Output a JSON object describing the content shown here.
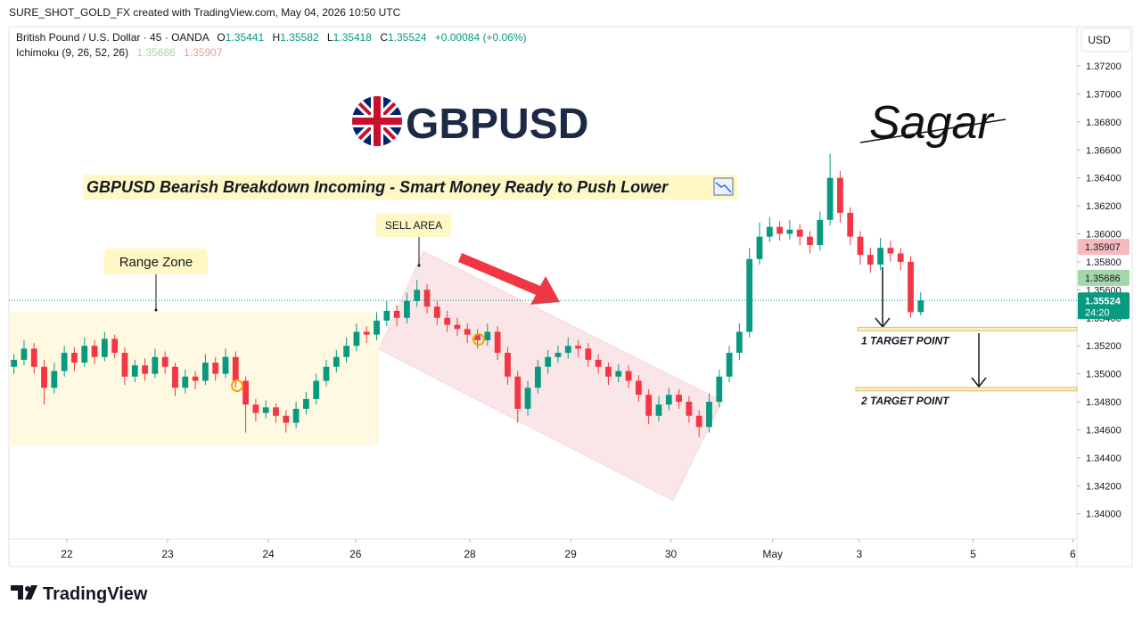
{
  "chart_data": {
    "type": "candlestick",
    "header": "SURE_SHOT_GOLD_FX created with TradingView.com, May 04, 2026 10:50 UTC",
    "symbol": "British Pound / U.S. Dollar · 45 · OANDA",
    "ohlc_prefixes": [
      "O",
      "H",
      "L",
      "C"
    ],
    "change": "+0.00084 (+0.06%)",
    "ichimoku": {
      "name": "Ichimoku (9, 26, 52, 26)",
      "values": [
        1.35686,
        1.35907
      ],
      "colors": [
        "#a5d6a7",
        "#ef9a9a"
      ]
    },
    "logo_text": "GBPUSD",
    "signature": "Sagar",
    "title": "GBPUSD Bearish Breakdown Incoming - Smart Money Ready to Push Lower",
    "annotations": [
      "SELL AREA",
      "Range Zone"
    ],
    "targets": [
      {
        "label": "1 TARGET POINT",
        "price": 1.3532
      },
      {
        "label": "2 TARGET POINT",
        "price": 1.3489
      }
    ],
    "currency": "USD",
    "countdown": "24:20",
    "brand": "TradingView",
    "up_color": "#089981",
    "down_color": "#f23645",
    "candles": {
      "open": [
        1.3505,
        1.351,
        1.3518,
        1.3505,
        1.349,
        1.3502,
        1.3515,
        1.3508,
        1.352,
        1.3512,
        1.3525,
        1.3515,
        1.3498,
        1.3506,
        1.35,
        1.3512,
        1.3505,
        1.349,
        1.3498,
        1.3495,
        1.3508,
        1.35,
        1.3512,
        1.3495,
        1.3478,
        1.3472,
        1.3476,
        1.347,
        1.3465,
        1.3475,
        1.3482,
        1.3495,
        1.3505,
        1.3512,
        1.352,
        1.353,
        1.3528,
        1.3538,
        1.3545,
        1.354,
        1.3552,
        1.356,
        1.3548,
        1.354,
        1.3535,
        1.3532,
        1.3528,
        1.3524,
        1.353,
        1.3515,
        1.3498,
        1.3475,
        1.349,
        1.3505,
        1.3512,
        1.3515,
        1.352,
        1.3518,
        1.351,
        1.3505,
        1.3498,
        1.3502,
        1.3495,
        1.3485,
        1.347,
        1.3478,
        1.3485,
        1.348,
        1.347,
        1.3462,
        1.348,
        1.3498,
        1.3515,
        1.353,
        1.3582,
        1.3598,
        1.3605,
        1.36,
        1.3603,
        1.3598,
        1.3592,
        1.361,
        1.364,
        1.3615,
        1.3598,
        1.3585,
        1.3578,
        1.359,
        1.3586,
        1.358,
        1.35441
      ],
      "high": [
        1.3514,
        1.3524,
        1.3522,
        1.351,
        1.3508,
        1.352,
        1.3519,
        1.3526,
        1.3524,
        1.353,
        1.3528,
        1.3519,
        1.351,
        1.3511,
        1.3518,
        1.3516,
        1.3508,
        1.3503,
        1.3502,
        1.3514,
        1.3512,
        1.3518,
        1.3516,
        1.3498,
        1.3482,
        1.3481,
        1.3479,
        1.3474,
        1.348,
        1.3487,
        1.35,
        1.351,
        1.3517,
        1.3526,
        1.3536,
        1.3534,
        1.3544,
        1.3552,
        1.3549,
        1.3558,
        1.3567,
        1.3564,
        1.3552,
        1.3545,
        1.354,
        1.3536,
        1.3532,
        1.3536,
        1.3534,
        1.3519,
        1.3502,
        1.3495,
        1.351,
        1.3517,
        1.352,
        1.3526,
        1.3524,
        1.3522,
        1.3514,
        1.3508,
        1.3507,
        1.3506,
        1.3499,
        1.3489,
        1.3484,
        1.349,
        1.3489,
        1.3484,
        1.3474,
        1.3486,
        1.3503,
        1.352,
        1.3536,
        1.359,
        1.3608,
        1.3612,
        1.3609,
        1.361,
        1.3607,
        1.3602,
        1.3616,
        1.3657,
        1.3645,
        1.3619,
        1.3602,
        1.359,
        1.3597,
        1.3595,
        1.359,
        1.3584,
        1.35582
      ],
      "low": [
        1.35,
        1.3506,
        1.35,
        1.3478,
        1.3486,
        1.3498,
        1.3502,
        1.3505,
        1.3507,
        1.3509,
        1.3511,
        1.3492,
        1.3494,
        1.3495,
        1.3497,
        1.35,
        1.3484,
        1.3486,
        1.3489,
        1.3492,
        1.3495,
        1.3497,
        1.349,
        1.3458,
        1.3466,
        1.3468,
        1.3465,
        1.3458,
        1.3461,
        1.3471,
        1.3478,
        1.3491,
        1.3501,
        1.3508,
        1.3516,
        1.3522,
        1.3524,
        1.3534,
        1.3534,
        1.3536,
        1.3548,
        1.3543,
        1.3535,
        1.353,
        1.3527,
        1.3522,
        1.3518,
        1.352,
        1.351,
        1.3492,
        1.3465,
        1.347,
        1.3486,
        1.35,
        1.3508,
        1.3511,
        1.3512,
        1.3505,
        1.35,
        1.3492,
        1.3494,
        1.349,
        1.348,
        1.3464,
        1.3466,
        1.3474,
        1.3475,
        1.3465,
        1.3455,
        1.3458,
        1.3476,
        1.3494,
        1.351,
        1.3526,
        1.3578,
        1.3594,
        1.3595,
        1.3596,
        1.3592,
        1.3586,
        1.3588,
        1.3606,
        1.3608,
        1.3592,
        1.3578,
        1.3572,
        1.3574,
        1.358,
        1.3574,
        1.354,
        1.35418
      ],
      "close": [
        1.351,
        1.3518,
        1.3505,
        1.349,
        1.3502,
        1.3515,
        1.3508,
        1.352,
        1.3512,
        1.3525,
        1.3515,
        1.3498,
        1.3506,
        1.35,
        1.3512,
        1.3505,
        1.349,
        1.3498,
        1.3495,
        1.3508,
        1.35,
        1.3512,
        1.3495,
        1.3478,
        1.3472,
        1.3476,
        1.347,
        1.3465,
        1.3475,
        1.3482,
        1.3495,
        1.3505,
        1.3512,
        1.352,
        1.353,
        1.3528,
        1.3538,
        1.3545,
        1.354,
        1.3552,
        1.356,
        1.3548,
        1.354,
        1.3535,
        1.3532,
        1.3528,
        1.3524,
        1.353,
        1.3515,
        1.3498,
        1.3475,
        1.349,
        1.3505,
        1.3512,
        1.3515,
        1.352,
        1.3518,
        1.351,
        1.3505,
        1.3498,
        1.3502,
        1.3495,
        1.3485,
        1.347,
        1.3478,
        1.3485,
        1.348,
        1.347,
        1.3462,
        1.348,
        1.3498,
        1.3515,
        1.353,
        1.3582,
        1.3598,
        1.3605,
        1.36,
        1.3603,
        1.3598,
        1.3592,
        1.361,
        1.364,
        1.3615,
        1.3598,
        1.3585,
        1.3578,
        1.359,
        1.3586,
        1.358,
        1.35441,
        1.35524
      ]
    },
    "xlim": [
      0,
      106
    ],
    "xticks": [
      {
        "value": 5.75,
        "label": "22"
      },
      {
        "value": 15.75,
        "label": "23"
      },
      {
        "value": 25.75,
        "label": "24"
      },
      {
        "value": 34.4,
        "label": "26"
      },
      {
        "value": 45.75,
        "label": "28"
      },
      {
        "value": 55.75,
        "label": "29"
      },
      {
        "value": 65.7,
        "label": "30"
      },
      {
        "value": 75.8,
        "label": "May"
      },
      {
        "value": 84.4,
        "label": "3"
      },
      {
        "value": 95.7,
        "label": "5"
      },
      {
        "value": 105.6,
        "label": "6"
      }
    ],
    "ylim": [
      1.3382,
      1.3748
    ],
    "yticks": [
      {
        "value": 1.372,
        "label": "1.37200"
      },
      {
        "value": 1.37,
        "label": "1.37000"
      },
      {
        "value": 1.368,
        "label": "1.36800"
      },
      {
        "value": 1.366,
        "label": "1.36600"
      },
      {
        "value": 1.364,
        "label": "1.36400"
      },
      {
        "value": 1.362,
        "label": "1.36200"
      },
      {
        "value": 1.36,
        "label": "1.36000"
      },
      {
        "value": 1.358,
        "label": "1.35800"
      },
      {
        "value": 1.356,
        "label": "1.35600"
      },
      {
        "value": 1.354,
        "label": "1.35400"
      },
      {
        "value": 1.352,
        "label": "1.35200"
      },
      {
        "value": 1.35,
        "label": "1.35000"
      },
      {
        "value": 1.348,
        "label": "1.34800"
      },
      {
        "value": 1.346,
        "label": "1.34600"
      },
      {
        "value": 1.344,
        "label": "1.34400"
      },
      {
        "value": 1.342,
        "label": "1.34200"
      },
      {
        "value": 1.34,
        "label": "1.34000"
      }
    ]
  }
}
